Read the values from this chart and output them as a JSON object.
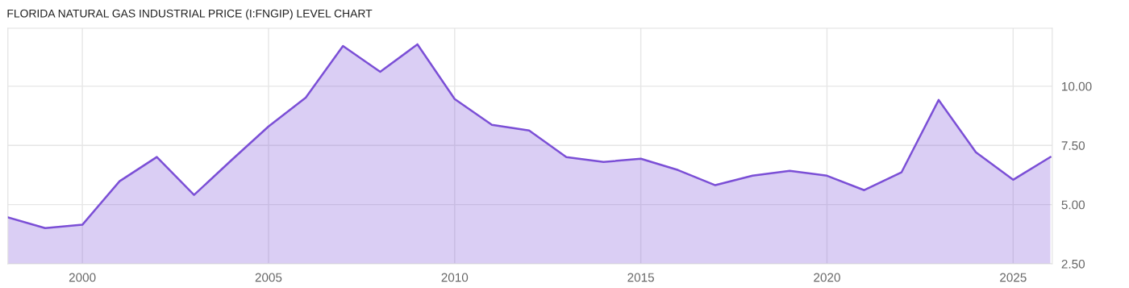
{
  "chart_data": {
    "type": "area",
    "title": "FLORIDA NATURAL GAS INDUSTRIAL PRICE (I:FNGIP) LEVEL CHART",
    "x": [
      1998,
      1999,
      2000,
      2001,
      2002,
      2003,
      2004,
      2005,
      2006,
      2007,
      2008,
      2009,
      2010,
      2011,
      2012,
      2013,
      2014,
      2015,
      2016,
      2017,
      2018,
      2019,
      2020,
      2021,
      2022,
      2023,
      2024,
      2025,
      2026
    ],
    "series": [
      {
        "color": "#7b4fd6",
        "values": [
          4.46,
          4.01,
          4.15,
          5.99,
          7.01,
          5.41,
          6.87,
          8.3,
          9.52,
          11.7,
          10.61,
          11.77,
          9.46,
          8.37,
          8.13,
          7.01,
          6.8,
          6.94,
          6.46,
          5.82,
          6.22,
          6.43,
          6.22,
          5.61,
          6.36,
          9.42,
          7.21,
          6.05,
          7.01
        ]
      }
    ],
    "xlim": [
      1998,
      2026.05
    ],
    "xticks": [
      2000,
      2005,
      2010,
      2015,
      2020,
      2025
    ],
    "ylim": [
      2.5,
      12.45
    ],
    "yticks": [
      {
        "value": 2.5,
        "label": "2.50"
      },
      {
        "value": 5,
        "label": "5.00"
      },
      {
        "value": 7.5,
        "label": "7.50"
      },
      {
        "value": 10,
        "label": "10.00"
      }
    ],
    "grid": true,
    "legend": false
  }
}
